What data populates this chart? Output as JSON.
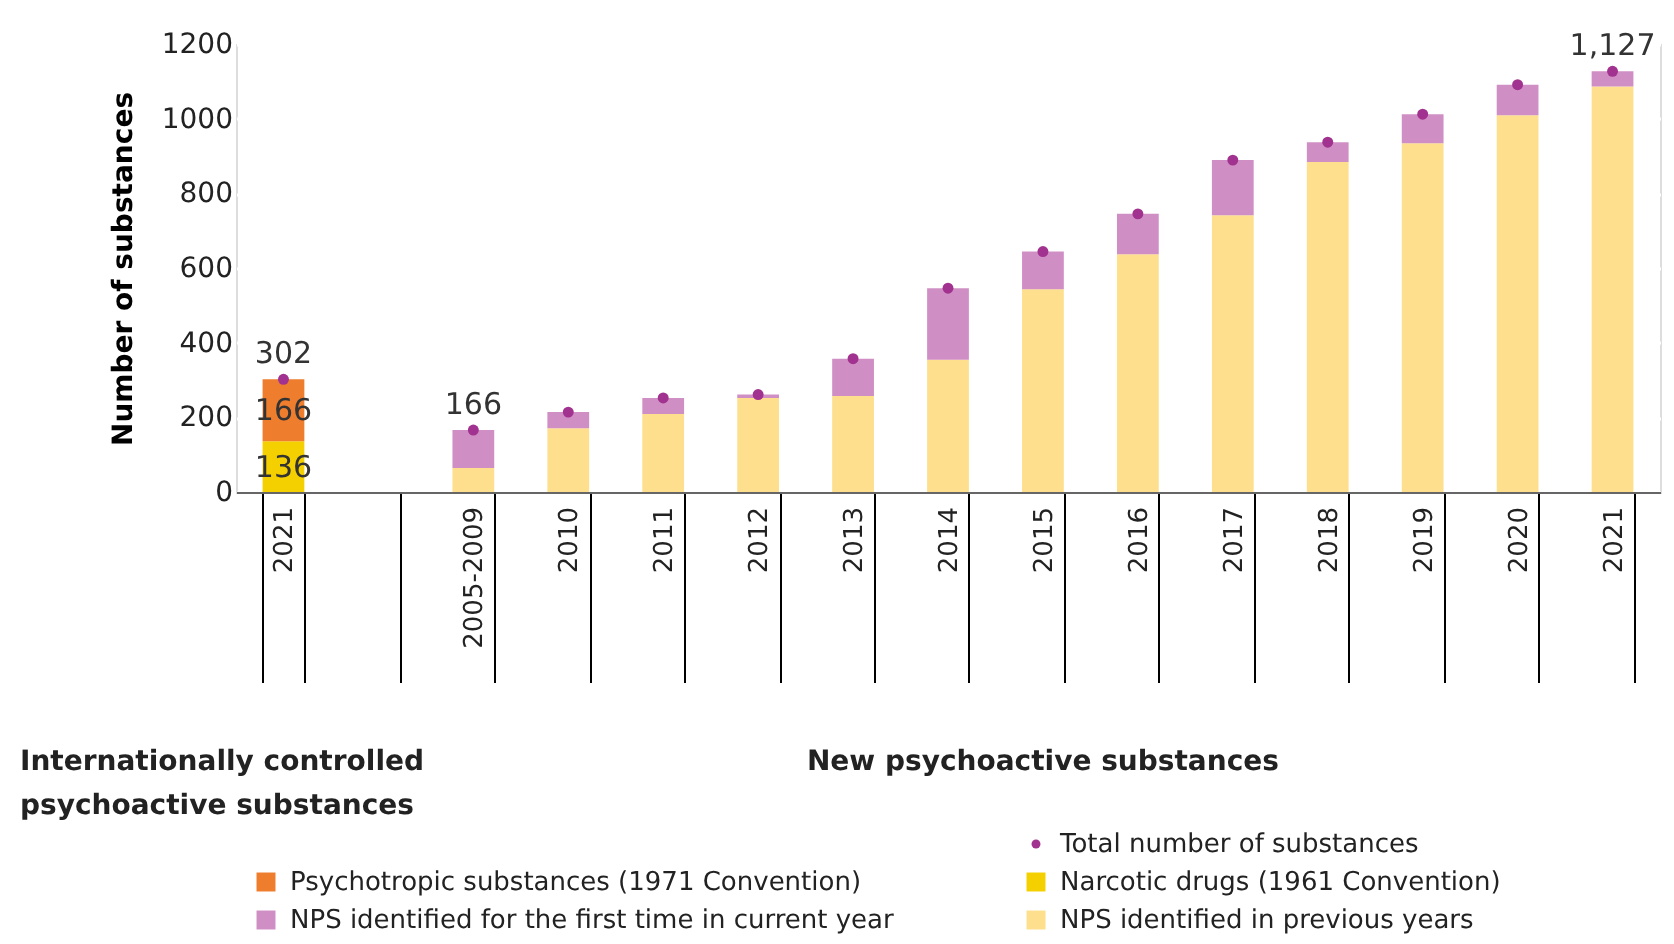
{
  "chart_data": {
    "type": "bar",
    "stacked": true,
    "ylabel": "Number of substances",
    "categories": [
      "2021",
      null,
      "2005-2009",
      "2010",
      "2011",
      "2012",
      "2013",
      "2014",
      "2015",
      "2016",
      "2017",
      "2018",
      "2019",
      "2020",
      "2021"
    ],
    "series": [
      {
        "name": "Narcotic drugs (1961 Convention)",
        "color": "#f5d000",
        "values": [
          136,
          null,
          null,
          null,
          null,
          null,
          null,
          null,
          null,
          null,
          null,
          null,
          null,
          null,
          null
        ],
        "value_labels": [
          "136",
          null,
          null,
          null,
          null,
          null,
          null,
          null,
          null,
          null,
          null,
          null,
          null,
          null,
          null
        ]
      },
      {
        "name": "Psychotropic substances (1971 Convention)",
        "color": "#ee7d2e",
        "values": [
          166,
          null,
          null,
          null,
          null,
          null,
          null,
          null,
          null,
          null,
          null,
          null,
          null,
          null,
          null
        ],
        "value_labels": [
          "166",
          null,
          null,
          null,
          null,
          null,
          null,
          null,
          null,
          null,
          null,
          null,
          null,
          null,
          null
        ]
      },
      {
        "name": "NPS identified in previous years",
        "color": "#fddf8d",
        "values": [
          null,
          null,
          64,
          171,
          209,
          252,
          257,
          354,
          543,
          637,
          741,
          884,
          934,
          1009,
          1086
        ]
      },
      {
        "name": "NPS identified for the first time in current year",
        "color": "#d08fc4",
        "values": [
          null,
          null,
          102,
          43,
          43,
          9,
          100,
          192,
          101,
          108,
          148,
          53,
          78,
          82,
          41
        ]
      },
      {
        "name": "Total number of substances",
        "type": "scatter",
        "color": "#a2328f",
        "values": [
          302,
          null,
          166,
          214,
          252,
          261,
          357,
          546,
          644,
          745,
          889,
          937,
          1012,
          1091,
          1127
        ],
        "value_labels": [
          "302",
          null,
          "166",
          null,
          null,
          null,
          null,
          null,
          null,
          null,
          null,
          null,
          null,
          null,
          "1,127"
        ]
      }
    ],
    "ylim": [
      0,
      1200
    ],
    "yticks": [
      0,
      200,
      400,
      600,
      800,
      1000,
      1200
    ],
    "grid": "y",
    "marker": "circle",
    "legend": "bottom",
    "annotations": [
      "Internationally controlled psychoactive substances",
      "New psychoactive substances"
    ]
  }
}
